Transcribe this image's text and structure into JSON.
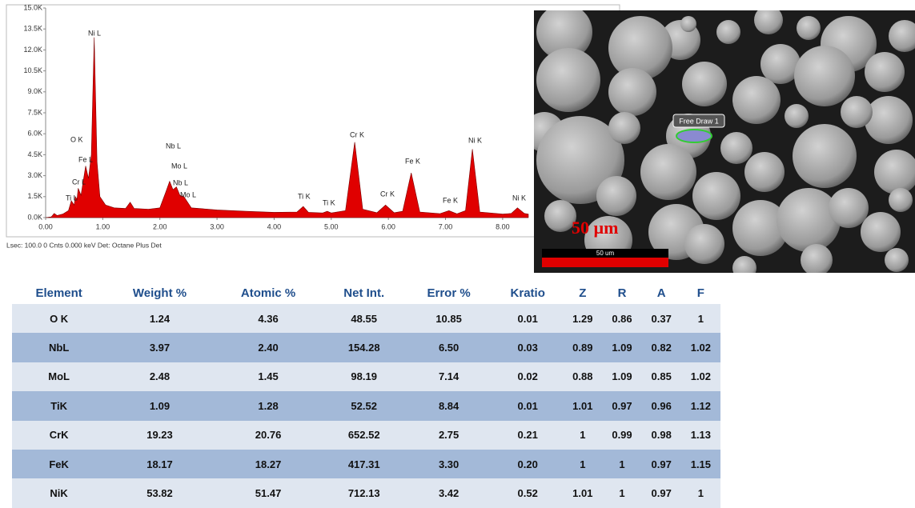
{
  "chart_data": {
    "type": "area",
    "x": [
      0.0,
      0.1,
      0.15,
      0.2,
      0.3,
      0.4,
      0.45,
      0.5,
      0.52,
      0.55,
      0.57,
      0.62,
      0.7,
      0.75,
      0.8,
      0.85,
      0.9,
      0.95,
      1.05,
      1.2,
      1.4,
      1.48,
      1.55,
      1.8,
      2.0,
      2.1,
      2.17,
      2.23,
      2.29,
      2.35,
      2.42,
      2.55,
      3.0,
      3.5,
      4.0,
      4.4,
      4.51,
      4.6,
      4.85,
      4.93,
      5.0,
      5.25,
      5.41,
      5.55,
      5.8,
      5.95,
      6.1,
      6.25,
      6.4,
      6.55,
      6.9,
      7.06,
      7.2,
      7.35,
      7.47,
      7.6,
      8.0,
      8.15,
      8.26,
      8.38,
      8.45
    ],
    "values": [
      0,
      50,
      300,
      150,
      250,
      500,
      1200,
      900,
      1500,
      1300,
      2100,
      1600,
      3700,
      2800,
      4500,
      12900,
      4000,
      1500,
      900,
      700,
      650,
      1100,
      650,
      600,
      700,
      1800,
      2600,
      2000,
      2200,
      1600,
      1500,
      700,
      550,
      450,
      380,
      400,
      800,
      380,
      330,
      450,
      330,
      500,
      5400,
      600,
      350,
      900,
      350,
      450,
      3200,
      400,
      280,
      500,
      270,
      500,
      4900,
      400,
      250,
      300,
      700,
      300,
      250
    ],
    "color": "#e00000",
    "xlim": [
      0,
      8.45
    ],
    "ylim": [
      0,
      15000
    ],
    "xticks": [
      {
        "value": 0,
        "label": "0.00"
      },
      {
        "value": 1,
        "label": "1.00"
      },
      {
        "value": 2,
        "label": "2.00"
      },
      {
        "value": 3,
        "label": "3.00"
      },
      {
        "value": 4,
        "label": "4.00"
      },
      {
        "value": 5,
        "label": "5.00"
      },
      {
        "value": 6,
        "label": "6.00"
      },
      {
        "value": 7,
        "label": "7.00"
      },
      {
        "value": 8,
        "label": "8.00"
      }
    ],
    "yticks": [
      {
        "value": 0,
        "label": "0.0K"
      },
      {
        "value": 1500,
        "label": "1.5K"
      },
      {
        "value": 3000,
        "label": "3.0K"
      },
      {
        "value": 4500,
        "label": "4.5K"
      },
      {
        "value": 6000,
        "label": "6.0K"
      },
      {
        "value": 7500,
        "label": "7.5K"
      },
      {
        "value": 9000,
        "label": "9.0K"
      },
      {
        "value": 10500,
        "label": "10.5K"
      },
      {
        "value": 12000,
        "label": "12.0K"
      },
      {
        "value": 13500,
        "label": "13.5K"
      },
      {
        "value": 15000,
        "label": "15.0K"
      }
    ],
    "annotations": [
      "O K",
      "Fe L",
      "Cr L",
      "Ti L",
      "Ni L",
      "Nb L",
      "Mo L",
      "Nb L",
      "Mo L",
      "Ti K",
      "Ti K",
      "Cr K",
      "Cr K",
      "Fe K",
      "Fe K",
      "Ni K",
      "Ni K"
    ],
    "footer": "Lsec: 100.0 0 Cnts  0.000 keV  Det: Octane Plus Det"
  },
  "image": {
    "roi_label": "Free Draw 1",
    "scale_bar_label": "50 um",
    "scale_text": "50 µm"
  },
  "table": {
    "header": [
      "Element",
      "Weight %",
      "Atomic %",
      "Net Int.",
      "Error %",
      "Kratio",
      "Z",
      "R",
      "A",
      "F"
    ],
    "rows": [
      [
        "O K",
        "1.24",
        "4.36",
        "48.55",
        "10.85",
        "0.01",
        "1.29",
        "0.86",
        "0.37",
        "1"
      ],
      [
        "NbL",
        "3.97",
        "2.40",
        "154.28",
        "6.50",
        "0.03",
        "0.89",
        "1.09",
        "0.82",
        "1.02"
      ],
      [
        "MoL",
        "2.48",
        "1.45",
        "98.19",
        "7.14",
        "0.02",
        "0.88",
        "1.09",
        "0.85",
        "1.02"
      ],
      [
        "TiK",
        "1.09",
        "1.28",
        "52.52",
        "8.84",
        "0.01",
        "1.01",
        "0.97",
        "0.96",
        "1.12"
      ],
      [
        "CrK",
        "19.23",
        "20.76",
        "652.52",
        "2.75",
        "0.21",
        "1",
        "0.99",
        "0.98",
        "1.13"
      ],
      [
        "FeK",
        "18.17",
        "18.27",
        "417.31",
        "3.30",
        "0.20",
        "1",
        "1",
        "0.97",
        "1.15"
      ],
      [
        "NiK",
        "53.82",
        "51.47",
        "712.13",
        "3.42",
        "0.52",
        "1.01",
        "1",
        "0.97",
        "1"
      ]
    ]
  }
}
